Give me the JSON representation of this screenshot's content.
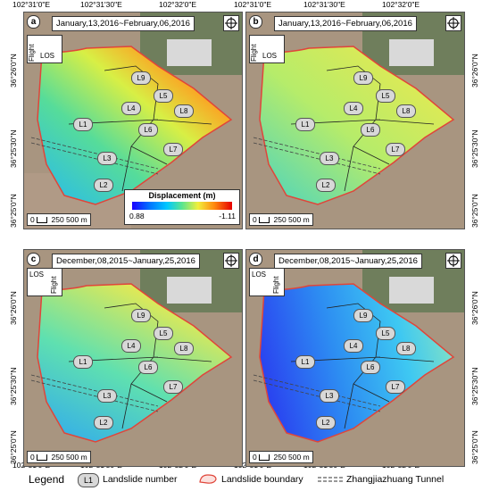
{
  "lat_labels": [
    "36°26'0\"N",
    "36°25'30\"N",
    "36°25'0\"N"
  ],
  "lon_labels": [
    "102°31'0\"E",
    "102°31'30\"E",
    "102°32'0\"E"
  ],
  "panels": [
    {
      "letter": "a",
      "date": "January,13,2016~February,06,2016",
      "los_word1": "Flight",
      "los_word2": "LOS"
    },
    {
      "letter": "b",
      "date": "January,13,2016~February,06,2016",
      "los_word1": "Flight",
      "los_word2": "LOS"
    },
    {
      "letter": "c",
      "date": "December,08,2015~January,25,2016",
      "los_word1": "LOS",
      "los_word2": "Flight"
    },
    {
      "letter": "d",
      "date": "December,08,2015~January,25,2016",
      "los_word1": "LOS",
      "los_word2": "Flight"
    }
  ],
  "landslide_labels": [
    "L1",
    "L2",
    "L3",
    "L4",
    "L5",
    "L6",
    "L7",
    "L8",
    "L9"
  ],
  "scale_bar_text": "250 500 m",
  "scale_bar_zero": "0",
  "colorbar": {
    "title": "Displacement (m)",
    "min": "0.88",
    "max": "-1.11"
  },
  "legend": {
    "title": "Legend",
    "l1_symbol": "L1",
    "landslide_number": "Landslide number",
    "landslide_boundary": "Landslide boundary",
    "tunnel": "Zhangjiazhuang Tunnel"
  },
  "colors": {
    "boundary": "#e0453a",
    "colorbar_low": "#1a00ff",
    "colorbar_high": "#e60000",
    "terrain": "#a89580"
  }
}
